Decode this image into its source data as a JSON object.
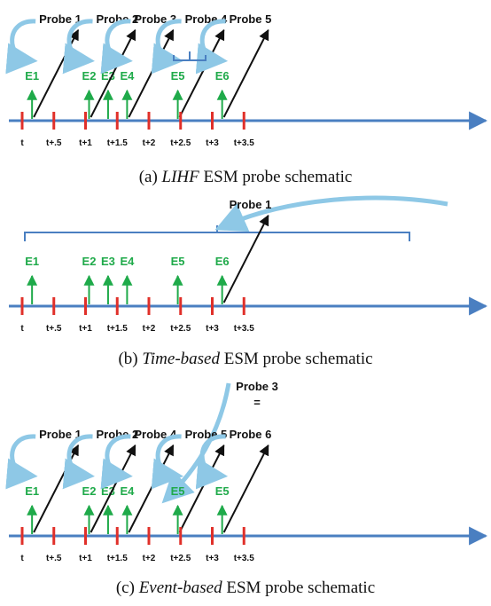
{
  "colors": {
    "timeline": "#4a7fc1",
    "tick": "#e0302a",
    "event": "#1faa4a",
    "probe_arrow": "#111111",
    "curve": "#8ec8e6",
    "bracket": "#4a7fc1"
  },
  "tick_labels": [
    "t",
    "t+.5",
    "t+1",
    "t+1.5",
    "t+2",
    "t+2.5",
    "t+3",
    "t+3.5"
  ],
  "panels": [
    {
      "id": "a",
      "caption_prefix": "(a) ",
      "caption_italic": "LIHF",
      "caption_suffix": " ESM probe schematic",
      "events": [
        {
          "label": "E1",
          "t": 0.1
        },
        {
          "label": "E2",
          "t": 1.0
        },
        {
          "label": "E3",
          "t": 1.3
        },
        {
          "label": "E4",
          "t": 1.6
        },
        {
          "label": "E5",
          "t": 2.4
        },
        {
          "label": "E6",
          "t": 3.1
        }
      ],
      "probes": [
        {
          "label": "Probe 1",
          "t": 0.1
        },
        {
          "label": "Probe 2",
          "t": 1.0
        },
        {
          "label": "Probe 3",
          "t": 1.6
        },
        {
          "label": "Probe 4",
          "t": 2.4
        },
        {
          "label": "Probe 5",
          "t": 3.1
        }
      ]
    },
    {
      "id": "b",
      "caption_prefix": "(b) ",
      "caption_italic": "Time-based",
      "caption_suffix": " ESM probe schematic",
      "events": [
        {
          "label": "E1",
          "t": 0.1
        },
        {
          "label": "E2",
          "t": 1.0
        },
        {
          "label": "E3",
          "t": 1.3
        },
        {
          "label": "E4",
          "t": 1.6
        },
        {
          "label": "E5",
          "t": 2.4
        },
        {
          "label": "E6",
          "t": 3.1
        }
      ],
      "probes": [
        {
          "label": "Probe 1",
          "t": 3.1
        }
      ]
    },
    {
      "id": "c",
      "caption_prefix": "(c) ",
      "caption_italic": "Event-based",
      "caption_suffix": " ESM probe schematic",
      "events": [
        {
          "label": "E1",
          "t": 0.1
        },
        {
          "label": "E2",
          "t": 1.0
        },
        {
          "label": "E3",
          "t": 1.3
        },
        {
          "label": "E4",
          "t": 1.6
        },
        {
          "label": "E5",
          "t": 2.4
        },
        {
          "label": "E5",
          "t": 3.1
        }
      ],
      "probes": [
        {
          "label": "Probe 1",
          "t": 0.1
        },
        {
          "label": "Probe 2",
          "t": 1.0
        },
        {
          "label": "Probe 4",
          "t": 1.6
        },
        {
          "label": "Probe 5",
          "t": 2.4
        },
        {
          "label": "Probe 6",
          "t": 3.1
        }
      ],
      "merged_label_top": "Probe 3",
      "merged_label_eq": "="
    }
  ]
}
